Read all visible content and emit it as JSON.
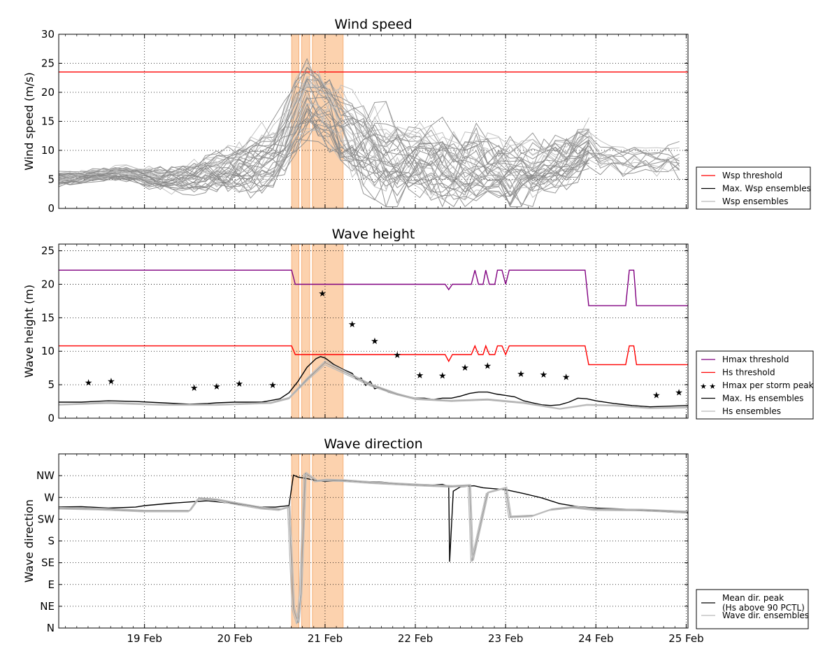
{
  "chart_data": [
    {
      "type": "line",
      "title": "Wind speed",
      "xlabel": "",
      "ylabel": "Wind speed (m/s)",
      "ylim": [
        0,
        30
      ],
      "yticks": [
        "0",
        "5",
        "10",
        "15",
        "20",
        "25",
        "30"
      ],
      "xticks": [
        "",
        "",
        "",
        "",
        "",
        "",
        ""
      ],
      "grid": true,
      "legend_position": "right",
      "storm_periods": [
        [
          20.63,
          20.71
        ],
        [
          20.74,
          20.83
        ],
        [
          20.86,
          21.2
        ]
      ],
      "series": [
        {
          "name": "Wsp threshold",
          "color": "#ff0000",
          "values": [
            [
              18.0,
              23.5
            ],
            [
              25.02,
              23.5
            ]
          ]
        },
        {
          "name": "Max. Wsp ensembles",
          "color": "#000000",
          "values": []
        },
        {
          "name": "Wsp ensembles",
          "color": "#bbbbbb",
          "envelope": {
            "x": [
              18.0,
              18.5,
              18.75,
              19.0,
              19.25,
              19.5,
              19.75,
              20.0,
              20.25,
              20.5,
              20.6,
              20.75,
              20.8,
              20.9,
              21.0,
              21.25,
              21.5,
              21.75,
              22.0,
              22.25,
              22.5,
              22.75,
              23.0,
              23.25,
              23.5,
              23.75,
              23.95,
              24.0,
              24.25,
              24.5,
              24.75,
              25.0
            ],
            "mid": [
              5.0,
              5.7,
              6.2,
              5.5,
              5.0,
              5.3,
              6.5,
              6.5,
              7.5,
              10.0,
              13.0,
              17.0,
              19.0,
              18.0,
              17.0,
              12.0,
              10.0,
              9.0,
              8.0,
              7.5,
              7.0,
              6.5,
              6.0,
              6.5,
              7.0,
              9.0,
              11.0,
              9.0,
              8.5,
              8.5,
              8.5,
              8.0
            ],
            "spread": [
              1.2,
              1.0,
              1.2,
              1.5,
              2.0,
              2.5,
              3.5,
              4.0,
              5.0,
              6.0,
              6.5,
              6.5,
              6.5,
              6.5,
              6.0,
              7.0,
              7.5,
              7.0,
              6.0,
              6.0,
              6.0,
              6.0,
              5.5,
              5.0,
              4.5,
              4.5,
              4.0,
              3.5,
              3.0,
              3.0,
              3.0,
              3.0
            ]
          }
        }
      ]
    },
    {
      "type": "line",
      "title": "Wave height",
      "xlabel": "",
      "ylabel": "Wave height (m)",
      "ylim": [
        0,
        26
      ],
      "yticks": [
        "0",
        "5",
        "10",
        "15",
        "20",
        "25"
      ],
      "xticks": [
        "",
        "",
        "",
        "",
        "",
        "",
        ""
      ],
      "grid": true,
      "legend_position": "right",
      "storm_periods": [
        [
          20.63,
          20.71
        ],
        [
          20.74,
          20.83
        ],
        [
          20.86,
          21.2
        ]
      ],
      "series": [
        {
          "name": "Hmax threshold",
          "color": "#800080",
          "values": [
            [
              18.0,
              22.1
            ],
            [
              20.63,
              22.1
            ],
            [
              20.67,
              20.0
            ],
            [
              22.33,
              20.0
            ],
            [
              22.37,
              19.2
            ],
            [
              22.41,
              20.0
            ],
            [
              22.62,
              20.0
            ],
            [
              22.66,
              22.1
            ],
            [
              22.7,
              20.0
            ],
            [
              22.75,
              20.0
            ],
            [
              22.78,
              22.1
            ],
            [
              22.82,
              20.0
            ],
            [
              22.88,
              20.0
            ],
            [
              22.91,
              22.1
            ],
            [
              22.96,
              22.1
            ],
            [
              23.0,
              20.0
            ],
            [
              23.04,
              22.1
            ],
            [
              23.88,
              22.1
            ],
            [
              23.92,
              16.8
            ],
            [
              24.33,
              16.8
            ],
            [
              24.37,
              22.1
            ],
            [
              24.42,
              22.1
            ],
            [
              24.45,
              16.8
            ],
            [
              25.02,
              16.8
            ]
          ]
        },
        {
          "name": "Hs threshold",
          "color": "#ff0000",
          "values": [
            [
              18.0,
              10.8
            ],
            [
              20.63,
              10.8
            ],
            [
              20.67,
              9.5
            ],
            [
              22.33,
              9.5
            ],
            [
              22.37,
              8.5
            ],
            [
              22.41,
              9.5
            ],
            [
              22.62,
              9.5
            ],
            [
              22.66,
              10.8
            ],
            [
              22.7,
              9.5
            ],
            [
              22.75,
              9.5
            ],
            [
              22.78,
              10.8
            ],
            [
              22.82,
              9.5
            ],
            [
              22.88,
              9.5
            ],
            [
              22.91,
              10.8
            ],
            [
              22.96,
              10.8
            ],
            [
              23.0,
              9.5
            ],
            [
              23.04,
              10.8
            ],
            [
              23.88,
              10.8
            ],
            [
              23.92,
              8.0
            ],
            [
              24.33,
              8.0
            ],
            [
              24.37,
              10.8
            ],
            [
              24.42,
              10.8
            ],
            [
              24.45,
              8.0
            ],
            [
              25.02,
              8.0
            ]
          ]
        },
        {
          "name": "Hmax per storm peak",
          "color": "#000000",
          "marker": "star",
          "values": [
            [
              18.38,
              5.4
            ],
            [
              18.63,
              5.6
            ],
            [
              19.55,
              4.6
            ],
            [
              19.8,
              4.8
            ],
            [
              20.05,
              5.2
            ],
            [
              20.42,
              5.0
            ],
            [
              20.97,
              18.7
            ],
            [
              21.3,
              14.1
            ],
            [
              21.55,
              11.6
            ],
            [
              21.8,
              9.5
            ],
            [
              22.05,
              6.5
            ],
            [
              22.3,
              6.4
            ],
            [
              22.55,
              7.6
            ],
            [
              22.8,
              7.9
            ],
            [
              23.17,
              6.7
            ],
            [
              23.42,
              6.6
            ],
            [
              23.67,
              6.2
            ],
            [
              24.67,
              3.5
            ],
            [
              24.92,
              3.9
            ]
          ]
        },
        {
          "name": "Max. Hs ensembles",
          "color": "#000000",
          "values": [
            [
              18.0,
              2.4
            ],
            [
              18.3,
              2.4
            ],
            [
              18.6,
              2.6
            ],
            [
              18.9,
              2.5
            ],
            [
              19.2,
              2.3
            ],
            [
              19.5,
              2.1
            ],
            [
              19.7,
              2.2
            ],
            [
              19.8,
              2.3
            ],
            [
              20.0,
              2.4
            ],
            [
              20.3,
              2.4
            ],
            [
              20.5,
              2.9
            ],
            [
              20.6,
              3.8
            ],
            [
              20.7,
              5.5
            ],
            [
              20.8,
              7.6
            ],
            [
              20.9,
              8.9
            ],
            [
              20.95,
              9.2
            ],
            [
              21.0,
              9.0
            ],
            [
              21.1,
              8.0
            ],
            [
              21.2,
              7.3
            ],
            [
              21.3,
              6.7
            ],
            [
              21.35,
              5.8
            ],
            [
              21.4,
              6.0
            ],
            [
              21.45,
              4.9
            ],
            [
              21.5,
              5.5
            ],
            [
              21.55,
              4.4
            ],
            [
              21.6,
              4.6
            ],
            [
              21.7,
              3.9
            ],
            [
              21.8,
              3.5
            ],
            [
              21.9,
              3.3
            ],
            [
              22.0,
              3.0
            ],
            [
              22.1,
              3.0
            ],
            [
              22.2,
              2.8
            ],
            [
              22.3,
              3.0
            ],
            [
              22.4,
              3.0
            ],
            [
              22.5,
              3.3
            ],
            [
              22.6,
              3.7
            ],
            [
              22.7,
              3.9
            ],
            [
              22.8,
              3.9
            ],
            [
              22.9,
              3.6
            ],
            [
              23.0,
              3.4
            ],
            [
              23.1,
              3.2
            ],
            [
              23.2,
              2.6
            ],
            [
              23.3,
              2.3
            ],
            [
              23.4,
              2.0
            ],
            [
              23.5,
              1.9
            ],
            [
              23.6,
              2.0
            ],
            [
              23.7,
              2.4
            ],
            [
              23.8,
              3.0
            ],
            [
              23.9,
              2.9
            ],
            [
              24.0,
              2.6
            ],
            [
              24.2,
              2.2
            ],
            [
              24.4,
              1.9
            ],
            [
              24.6,
              1.7
            ],
            [
              24.8,
              1.8
            ],
            [
              25.02,
              1.9
            ]
          ]
        },
        {
          "name": "Hs ensembles",
          "color": "#bbbbbb",
          "values": [
            [
              18.0,
              2.0
            ],
            [
              18.6,
              2.3
            ],
            [
              19.2,
              2.0
            ],
            [
              19.8,
              2.0
            ],
            [
              20.4,
              2.3
            ],
            [
              20.6,
              3.0
            ],
            [
              20.8,
              5.8
            ],
            [
              21.0,
              8.3
            ],
            [
              21.2,
              7.0
            ],
            [
              21.5,
              5.0
            ],
            [
              21.8,
              3.6
            ],
            [
              22.0,
              2.9
            ],
            [
              22.4,
              2.6
            ],
            [
              22.8,
              2.8
            ],
            [
              23.2,
              2.3
            ],
            [
              23.6,
              1.4
            ],
            [
              23.9,
              2.0
            ],
            [
              24.2,
              1.9
            ],
            [
              24.6,
              1.5
            ],
            [
              25.02,
              1.6
            ]
          ]
        }
      ]
    },
    {
      "type": "line",
      "title": "Wave direction",
      "xlabel": "",
      "ylabel": "Wave direction",
      "ylim": [
        0,
        360
      ],
      "yticks": [
        "N",
        "NE",
        "E",
        "SE",
        "S",
        "SW",
        "W",
        "NW"
      ],
      "xticks": [
        "19 Feb",
        "20 Feb",
        "21 Feb",
        "22 Feb",
        "23 Feb",
        "24 Feb",
        "25 Feb"
      ],
      "grid": true,
      "legend_position": "right",
      "storm_periods": [
        [
          20.63,
          20.71
        ],
        [
          20.74,
          20.83
        ],
        [
          20.86,
          21.2
        ]
      ],
      "series": [
        {
          "name": "Mean dir. peak\n(Hs above 90 PCTL)",
          "color": "#000000",
          "values": [
            [
              18.0,
              250
            ],
            [
              18.3,
              251
            ],
            [
              18.6,
              248
            ],
            [
              18.9,
              250
            ],
            [
              19.0,
              253
            ],
            [
              19.3,
              258
            ],
            [
              19.6,
              262
            ],
            [
              19.7,
              263
            ],
            [
              20.0,
              257
            ],
            [
              20.3,
              250
            ],
            [
              20.45,
              250
            ],
            [
              20.6,
              253
            ],
            [
              20.65,
              316
            ],
            [
              20.7,
              312
            ],
            [
              20.8,
              309
            ],
            [
              20.9,
              305
            ],
            [
              21.0,
              303
            ],
            [
              21.2,
              305
            ],
            [
              21.4,
              303
            ],
            [
              21.6,
              302
            ],
            [
              21.8,
              299
            ],
            [
              22.0,
              297
            ],
            [
              22.2,
              296
            ],
            [
              22.3,
              297
            ],
            [
              22.37,
              293
            ],
            [
              22.38,
              137
            ],
            [
              22.42,
              283
            ],
            [
              22.5,
              292
            ],
            [
              22.65,
              294
            ],
            [
              22.75,
              290
            ],
            [
              23.0,
              286
            ],
            [
              23.2,
              278
            ],
            [
              23.4,
              269
            ],
            [
              23.6,
              257
            ],
            [
              23.8,
              251
            ],
            [
              24.0,
              248
            ],
            [
              24.3,
              246
            ],
            [
              24.6,
              243
            ],
            [
              24.8,
              240
            ],
            [
              25.02,
              238
            ]
          ]
        },
        {
          "name": "Wave dir. ensembles",
          "color": "#bbbbbb",
          "values": [
            [
              18.0,
              248
            ],
            [
              18.5,
              246
            ],
            [
              19.0,
              242
            ],
            [
              19.5,
              242
            ],
            [
              19.6,
              268
            ],
            [
              19.8,
              265
            ],
            [
              20.0,
              258
            ],
            [
              20.3,
              248
            ],
            [
              20.5,
              245
            ],
            [
              20.6,
              250
            ],
            [
              20.65,
              40
            ],
            [
              20.7,
              10
            ],
            [
              20.73,
              70
            ],
            [
              20.78,
              320
            ],
            [
              20.82,
              315
            ],
            [
              20.9,
              304
            ],
            [
              21.0,
              306
            ],
            [
              21.2,
              305
            ],
            [
              21.5,
              301
            ],
            [
              22.0,
              296
            ],
            [
              22.4,
              293
            ],
            [
              22.5,
              294
            ],
            [
              22.6,
              295
            ],
            [
              22.63,
              138
            ],
            [
              22.8,
              280
            ],
            [
              23.0,
              290
            ],
            [
              23.05,
              230
            ],
            [
              23.3,
              232
            ],
            [
              23.5,
              245
            ],
            [
              23.75,
              250
            ],
            [
              24.0,
              245
            ],
            [
              24.5,
              244
            ],
            [
              25.02,
              240
            ]
          ]
        }
      ]
    }
  ]
}
